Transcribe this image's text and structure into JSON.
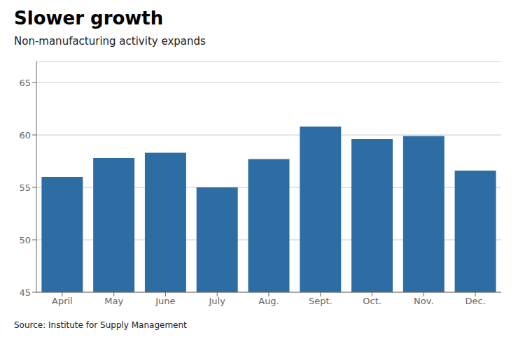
{
  "chart_data": {
    "type": "bar",
    "title": "Slower growth",
    "subtitle": "Non-manufacturing activity expands",
    "source": "Source: Institute for Supply Management",
    "categories": [
      "April",
      "May",
      "June",
      "July",
      "Aug.",
      "Sept.",
      "Oct.",
      "Nov.",
      "Dec."
    ],
    "values": [
      56.0,
      57.8,
      58.3,
      55.0,
      57.7,
      60.8,
      59.6,
      59.9,
      56.6
    ],
    "color": "#2E6DA4",
    "ylim": [
      45,
      67
    ],
    "yticks": [
      45,
      50,
      55,
      60,
      65
    ],
    "grid": true
  }
}
